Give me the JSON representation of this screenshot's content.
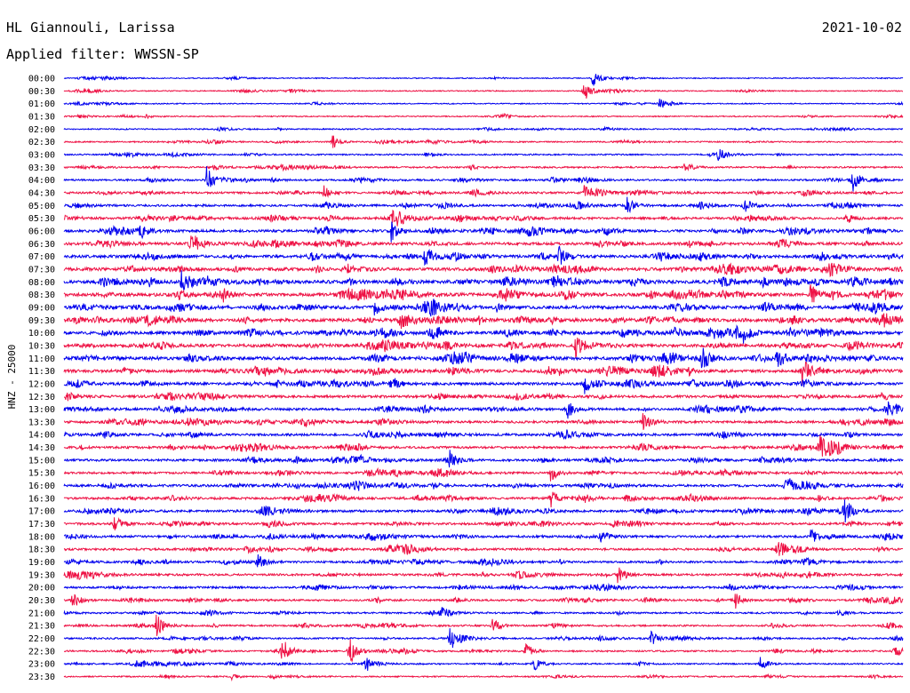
{
  "header": {
    "station": "HL Giannouli, Larissa",
    "filter": "Applied filter: WWSSN-SP",
    "date": "2021-10-02"
  },
  "chart_data": {
    "type": "line",
    "title": "HL Giannouli, Larissa",
    "subtitle": "Applied filter: WWSSN-SP",
    "date": "2021-10-02",
    "ylabel": "HNZ - 25000",
    "row_labels": [
      "00:00",
      "00:30",
      "01:00",
      "01:30",
      "02:00",
      "02:30",
      "03:00",
      "03:30",
      "04:00",
      "04:30",
      "05:00",
      "05:30",
      "06:00",
      "06:30",
      "07:00",
      "07:30",
      "08:00",
      "08:30",
      "09:00",
      "09:30",
      "10:00",
      "10:30",
      "11:00",
      "11:30",
      "12:00",
      "12:30",
      "13:00",
      "13:30",
      "14:00",
      "14:30",
      "15:00",
      "15:30",
      "16:00",
      "16:30",
      "17:00",
      "17:30",
      "18:00",
      "18:30",
      "19:00",
      "19:30",
      "20:00",
      "20:30",
      "21:00",
      "21:30",
      "22:00",
      "22:30",
      "23:00",
      "23:30"
    ],
    "trace_colors": [
      "#0000ee",
      "#ee1144"
    ],
    "row_activity": [
      0.1,
      0.12,
      0.12,
      0.14,
      0.18,
      0.2,
      0.22,
      0.28,
      0.34,
      0.4,
      0.42,
      0.46,
      0.55,
      0.6,
      0.62,
      0.72,
      0.78,
      0.78,
      0.72,
      0.74,
      0.7,
      0.7,
      0.72,
      0.66,
      0.6,
      0.55,
      0.52,
      0.5,
      0.5,
      0.48,
      0.46,
      0.42,
      0.5,
      0.46,
      0.48,
      0.46,
      0.46,
      0.44,
      0.42,
      0.44,
      0.4,
      0.38,
      0.3,
      0.3,
      0.28,
      0.28,
      0.24,
      0.2
    ],
    "events": [
      {
        "row": 0,
        "x": 0.63,
        "amp": 11
      },
      {
        "row": 1,
        "x": 0.62,
        "amp": 12
      },
      {
        "row": 2,
        "x": 0.71,
        "amp": 7
      },
      {
        "row": 5,
        "x": 0.32,
        "amp": 8
      },
      {
        "row": 6,
        "x": 0.78,
        "amp": 7
      },
      {
        "row": 7,
        "x": 0.74,
        "amp": 7
      },
      {
        "row": 8,
        "x": 0.17,
        "amp": 16
      },
      {
        "row": 8,
        "x": 0.94,
        "amp": 14
      },
      {
        "row": 9,
        "x": 0.31,
        "amp": 9
      },
      {
        "row": 9,
        "x": 0.62,
        "amp": 8
      },
      {
        "row": 10,
        "x": 0.67,
        "amp": 11
      },
      {
        "row": 10,
        "x": 0.81,
        "amp": 11
      },
      {
        "row": 11,
        "x": 0.39,
        "amp": 10
      },
      {
        "row": 11,
        "x": 0.93,
        "amp": 9
      },
      {
        "row": 12,
        "x": 0.09,
        "amp": 11
      },
      {
        "row": 12,
        "x": 0.39,
        "amp": 12
      },
      {
        "row": 13,
        "x": 0.15,
        "amp": 10
      },
      {
        "row": 14,
        "x": 0.43,
        "amp": 12
      },
      {
        "row": 14,
        "x": 0.59,
        "amp": 10
      },
      {
        "row": 16,
        "x": 0.14,
        "amp": 12
      },
      {
        "row": 17,
        "x": 0.89,
        "amp": 13
      },
      {
        "row": 18,
        "x": 0.37,
        "amp": 9
      },
      {
        "row": 19,
        "x": 0.4,
        "amp": 10
      },
      {
        "row": 20,
        "x": 0.81,
        "amp": 10
      },
      {
        "row": 21,
        "x": 0.61,
        "amp": 15
      },
      {
        "row": 22,
        "x": 0.76,
        "amp": 11
      },
      {
        "row": 22,
        "x": 0.85,
        "amp": 12
      },
      {
        "row": 23,
        "x": 0.88,
        "amp": 17
      },
      {
        "row": 24,
        "x": 0.39,
        "amp": 10
      },
      {
        "row": 24,
        "x": 0.62,
        "amp": 11
      },
      {
        "row": 26,
        "x": 0.6,
        "amp": 11
      },
      {
        "row": 26,
        "x": 0.98,
        "amp": 10
      },
      {
        "row": 27,
        "x": 0.69,
        "amp": 12
      },
      {
        "row": 29,
        "x": 0.9,
        "amp": 14
      },
      {
        "row": 30,
        "x": 0.46,
        "amp": 10
      },
      {
        "row": 31,
        "x": 0.58,
        "amp": 10
      },
      {
        "row": 32,
        "x": 0.86,
        "amp": 14
      },
      {
        "row": 33,
        "x": 0.58,
        "amp": 11
      },
      {
        "row": 34,
        "x": 0.93,
        "amp": 13
      },
      {
        "row": 35,
        "x": 0.06,
        "amp": 10
      },
      {
        "row": 36,
        "x": 0.64,
        "amp": 10
      },
      {
        "row": 36,
        "x": 0.89,
        "amp": 9
      },
      {
        "row": 37,
        "x": 0.85,
        "amp": 11
      },
      {
        "row": 38,
        "x": 0.23,
        "amp": 10
      },
      {
        "row": 39,
        "x": 0.66,
        "amp": 11
      },
      {
        "row": 41,
        "x": 0.01,
        "amp": 10
      },
      {
        "row": 41,
        "x": 0.8,
        "amp": 9
      },
      {
        "row": 42,
        "x": 0.45,
        "amp": 6
      },
      {
        "row": 43,
        "x": 0.11,
        "amp": 13
      },
      {
        "row": 43,
        "x": 0.51,
        "amp": 10
      },
      {
        "row": 44,
        "x": 0.46,
        "amp": 14
      },
      {
        "row": 44,
        "x": 0.7,
        "amp": 8
      },
      {
        "row": 45,
        "x": 0.26,
        "amp": 15
      },
      {
        "row": 45,
        "x": 0.34,
        "amp": 18
      },
      {
        "row": 45,
        "x": 0.55,
        "amp": 10
      },
      {
        "row": 45,
        "x": 0.99,
        "amp": 8
      },
      {
        "row": 46,
        "x": 0.36,
        "amp": 8
      },
      {
        "row": 46,
        "x": 0.56,
        "amp": 10
      },
      {
        "row": 46,
        "x": 0.83,
        "amp": 7
      },
      {
        "row": 47,
        "x": 0.2,
        "amp": 3
      }
    ]
  }
}
